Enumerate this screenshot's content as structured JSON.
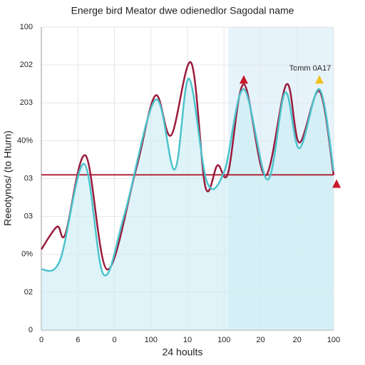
{
  "chart_data": {
    "type": "line",
    "title": "Energe bird Meator dwe odienedlor Sagodal name",
    "x_label": "24 hoults",
    "y_label": "Reeotynos/ (to Hturn)",
    "annotation": "Tomm 0A17",
    "xlim": [
      0,
      8
    ],
    "ylim": [
      0,
      8
    ],
    "xticks": [
      0,
      {
        "value": 1,
        "label": "6"
      },
      {
        "value": 2,
        "label": "0"
      },
      {
        "value": 3,
        "label": "100"
      },
      {
        "value": 4,
        "label": "10"
      },
      {
        "value": 5,
        "label": "100"
      },
      {
        "value": 6,
        "label": "20"
      },
      {
        "value": 7,
        "label": "20"
      },
      {
        "value": 8,
        "label": "100"
      }
    ],
    "yticks": [
      0,
      {
        "value": 1,
        "label": "02"
      },
      {
        "value": 2,
        "label": "0%"
      },
      {
        "value": 3,
        "label": "03"
      },
      {
        "value": 4,
        "label": "03"
      },
      {
        "value": 5,
        "label": "40%"
      },
      {
        "value": 6,
        "label": "203"
      },
      {
        "value": 7,
        "label": "202"
      },
      {
        "value": 8,
        "label": "100"
      }
    ],
    "grid": true,
    "series": [
      {
        "color": "#9a1b3c",
        "x": [
          0,
          0.43,
          0.66,
          1.21,
          1.8,
          2.58,
          3.12,
          3.55,
          4.1,
          4.49,
          4.82,
          5.11,
          5.54,
          6.13,
          6.71,
          7.06,
          7.61,
          8.0
        ],
        "values": [
          2.13,
          2.73,
          2.54,
          4.61,
          1.6,
          4.2,
          6.19,
          5.14,
          7.06,
          3.78,
          4.35,
          4.14,
          6.49,
          4.08,
          6.49,
          4.95,
          6.31,
          4.1
        ]
      },
      {
        "color": "#4cc3cc",
        "x": [
          0,
          0.51,
          1.17,
          1.7,
          2.28,
          3.12,
          3.65,
          4.04,
          4.53,
          5.01,
          5.54,
          6.19,
          6.67,
          7.06,
          7.61,
          8.0
        ],
        "values": [
          1.6,
          1.84,
          4.39,
          1.47,
          3.07,
          6.08,
          4.24,
          6.64,
          3.92,
          4.2,
          6.36,
          3.97,
          6.27,
          4.8,
          6.36,
          4.2
        ]
      }
    ],
    "reference_line": {
      "value": 4.1,
      "color": "#b0283a"
    },
    "markers": [
      {
        "x": 5.54,
        "y": 6.6,
        "color": "#c8182a"
      },
      {
        "x": 7.61,
        "y": 6.6,
        "color": "#f0c020"
      },
      {
        "x": 8.08,
        "y": 3.85,
        "color": "#c8182a"
      }
    ]
  }
}
